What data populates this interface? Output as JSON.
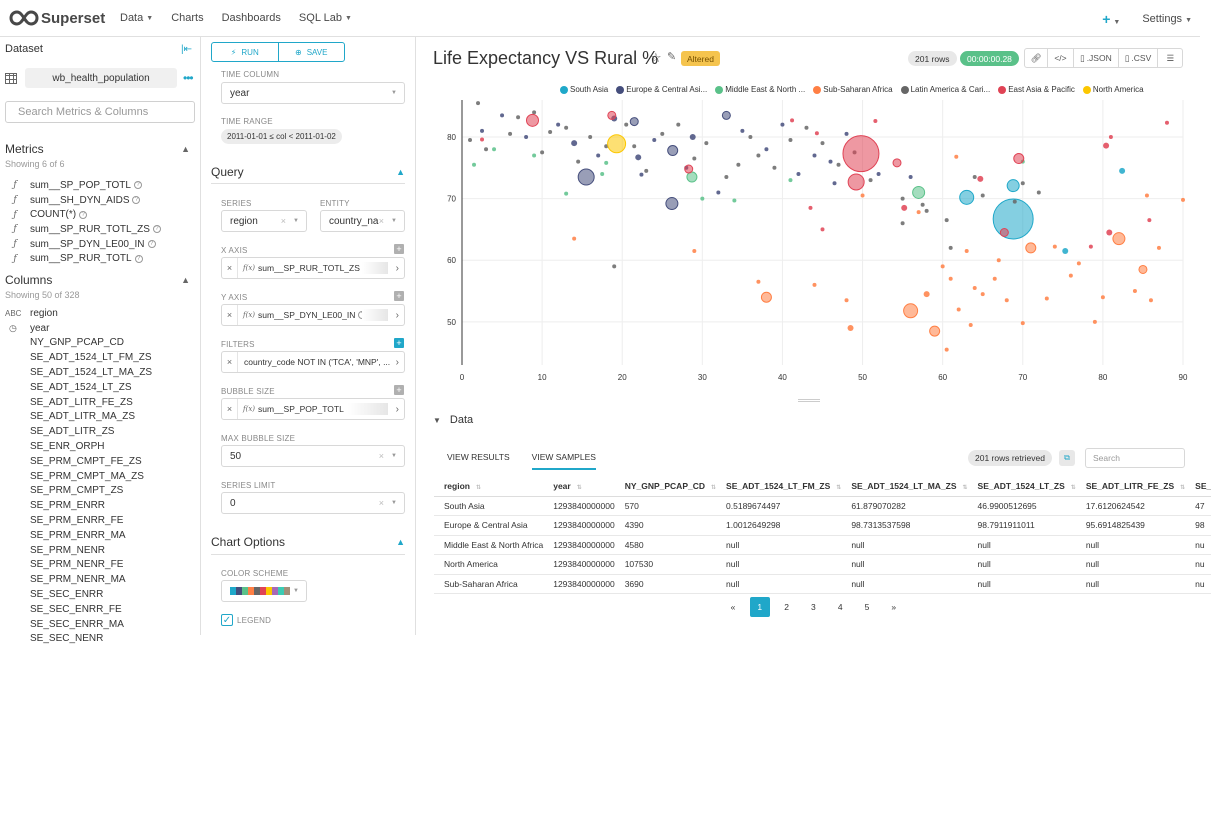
{
  "nav": {
    "logo": "Superset",
    "items": [
      {
        "label": "Data",
        "caret": true
      },
      {
        "label": "Charts",
        "caret": false
      },
      {
        "label": "Dashboards",
        "caret": false
      },
      {
        "label": "SQL Lab",
        "caret": true
      }
    ],
    "plus": "+",
    "settings": "Settings"
  },
  "datasource": {
    "header": "Dataset",
    "name": "wb_health_population",
    "search_placeholder": "Search Metrics & Columns",
    "metrics_title": "Metrics",
    "metrics_sub": "Showing 6 of 6",
    "metrics": [
      "sum__SP_POP_TOTL",
      "sum__SH_DYN_AIDS",
      "COUNT(*)",
      "sum__SP_RUR_TOTL_ZS",
      "sum__SP_DYN_LE00_IN",
      "sum__SP_RUR_TOTL"
    ],
    "columns_title": "Columns",
    "columns_sub": "Showing 50 of 328",
    "columns": [
      {
        "type": "ABC",
        "name": "region"
      },
      {
        "type": "clock",
        "name": "year"
      },
      {
        "type": "",
        "name": "NY_GNP_PCAP_CD"
      },
      {
        "type": "",
        "name": "SE_ADT_1524_LT_FM_ZS"
      },
      {
        "type": "",
        "name": "SE_ADT_1524_LT_MA_ZS"
      },
      {
        "type": "",
        "name": "SE_ADT_1524_LT_ZS"
      },
      {
        "type": "",
        "name": "SE_ADT_LITR_FE_ZS"
      },
      {
        "type": "",
        "name": "SE_ADT_LITR_MA_ZS"
      },
      {
        "type": "",
        "name": "SE_ADT_LITR_ZS"
      },
      {
        "type": "",
        "name": "SE_ENR_ORPH"
      },
      {
        "type": "",
        "name": "SE_PRM_CMPT_FE_ZS"
      },
      {
        "type": "",
        "name": "SE_PRM_CMPT_MA_ZS"
      },
      {
        "type": "",
        "name": "SE_PRM_CMPT_ZS"
      },
      {
        "type": "",
        "name": "SE_PRM_ENRR"
      },
      {
        "type": "",
        "name": "SE_PRM_ENRR_FE"
      },
      {
        "type": "",
        "name": "SE_PRM_ENRR_MA"
      },
      {
        "type": "",
        "name": "SE_PRM_NENR"
      },
      {
        "type": "",
        "name": "SE_PRM_NENR_FE"
      },
      {
        "type": "",
        "name": "SE_PRM_NENR_MA"
      },
      {
        "type": "",
        "name": "SE_SEC_ENRR"
      },
      {
        "type": "",
        "name": "SE_SEC_ENRR_FE"
      },
      {
        "type": "",
        "name": "SE_SEC_ENRR_MA"
      },
      {
        "type": "",
        "name": "SE_SEC_NENR"
      }
    ]
  },
  "controls": {
    "run": "RUN",
    "save": "SAVE",
    "time_column_label": "TIME COLUMN",
    "time_column_value": "year",
    "time_range_label": "TIME RANGE",
    "time_range_value": "2011-01-01 ≤ col < 2011-01-02",
    "query_title": "Query",
    "series_label": "SERIES",
    "series_value": "region",
    "entity_label": "ENTITY",
    "entity_value": "country_na",
    "x_axis_label": "X AXIS",
    "x_axis_value": "sum__SP_RUR_TOTL_ZS",
    "y_axis_label": "Y AXIS",
    "y_axis_value": "sum__SP_DYN_LE00_IN",
    "filters_label": "FILTERS",
    "filters_value": "country_code NOT IN ('TCA', 'MNP', ...",
    "bubble_size_label": "BUBBLE SIZE",
    "bubble_size_value": "sum__SP_POP_TOTL",
    "max_bubble_label": "MAX BUBBLE SIZE",
    "max_bubble_value": "50",
    "series_limit_label": "SERIES LIMIT",
    "series_limit_value": "0",
    "chart_options_title": "Chart Options",
    "color_scheme_label": "COLOR SCHEME",
    "legend_label": "LEGEND",
    "scheme_colors": [
      "#1fa8c9",
      "#454e7c",
      "#5ac189",
      "#ff7f44",
      "#666666",
      "#e04355",
      "#fcc700",
      "#a868b7",
      "#3cccb4",
      "#a38f79"
    ]
  },
  "chart": {
    "title": "Life Expectancy VS Rural %",
    "altered": "Altered",
    "rows": "201 rows",
    "timer": "00:00:00.28",
    "json": ".JSON",
    "csv": ".CSV",
    "legend": [
      {
        "label": "South Asia",
        "color": "#1fa8c9"
      },
      {
        "label": "Europe & Central Asi...",
        "color": "#454e7c"
      },
      {
        "label": "Middle East & North ...",
        "color": "#5ac189"
      },
      {
        "label": "Sub-Saharan Africa",
        "color": "#ff7f44"
      },
      {
        "label": "Latin America & Cari...",
        "color": "#666666"
      },
      {
        "label": "East Asia & Pacific",
        "color": "#e04355"
      },
      {
        "label": "North America",
        "color": "#fcc700"
      }
    ]
  },
  "chart_data": {
    "type": "scatter",
    "title": "Life Expectancy VS Rural %",
    "xlabel": "",
    "ylabel": "",
    "xlim": [
      0,
      90
    ],
    "ylim": [
      43,
      86
    ],
    "xticks": [
      0,
      10,
      20,
      30,
      40,
      50,
      60,
      70,
      80,
      90
    ],
    "yticks": [
      50,
      60,
      70,
      80
    ],
    "grid": true,
    "series": [
      {
        "name": "South Asia",
        "color": "#1fa8c9",
        "points": [
          [
            63,
            70.2,
            7
          ],
          [
            68.8,
            66.7,
            20
          ],
          [
            68.8,
            72.1,
            6
          ],
          [
            82.4,
            74.5,
            3
          ],
          [
            75.3,
            61.5,
            3
          ]
        ]
      },
      {
        "name": "Europe & Central Asia",
        "color": "#454e7c",
        "points": [
          [
            2.5,
            81,
            2
          ],
          [
            5,
            83.5,
            2
          ],
          [
            8,
            80,
            2
          ],
          [
            12,
            82,
            2
          ],
          [
            14,
            79,
            3
          ],
          [
            15.5,
            73.5,
            8
          ],
          [
            17,
            77,
            2
          ],
          [
            19,
            83,
            3
          ],
          [
            21.5,
            82.5,
            4
          ],
          [
            22,
            76.7,
            3
          ],
          [
            24,
            79.5,
            2
          ],
          [
            26.3,
            77.8,
            5
          ],
          [
            28,
            75,
            2
          ],
          [
            28.8,
            80,
            3
          ],
          [
            32,
            71,
            2
          ],
          [
            33,
            83.5,
            4
          ],
          [
            35,
            81,
            2
          ],
          [
            38,
            78,
            2
          ],
          [
            40,
            82,
            2
          ],
          [
            42,
            74,
            2
          ],
          [
            44,
            77,
            2
          ],
          [
            46,
            76,
            2
          ],
          [
            48,
            80.5,
            2
          ],
          [
            52,
            74,
            2
          ],
          [
            56,
            73.5,
            2
          ],
          [
            46.5,
            72.5,
            2
          ],
          [
            26.2,
            69.2,
            6
          ],
          [
            22.4,
            73.9,
            2
          ]
        ]
      },
      {
        "name": "Middle East & North Africa",
        "color": "#5ac189",
        "points": [
          [
            1.5,
            75.5,
            2
          ],
          [
            4,
            78,
            2
          ],
          [
            9,
            77,
            2
          ],
          [
            13,
            70.8,
            2
          ],
          [
            17.5,
            74,
            2
          ],
          [
            18,
            75.8,
            2
          ],
          [
            28.7,
            73.5,
            5
          ],
          [
            34,
            69.7,
            2
          ],
          [
            41,
            73,
            2
          ],
          [
            57,
            71,
            6
          ],
          [
            30,
            70,
            2
          ],
          [
            70,
            76,
            2
          ]
        ]
      },
      {
        "name": "Sub-Saharan Africa",
        "color": "#ff7f44",
        "points": [
          [
            14,
            63.5,
            2
          ],
          [
            29,
            61.5,
            2
          ],
          [
            37,
            56.5,
            2
          ],
          [
            38,
            54,
            5
          ],
          [
            44,
            56,
            2
          ],
          [
            48,
            53.5,
            2
          ],
          [
            48.5,
            49,
            3
          ],
          [
            56,
            51.8,
            7
          ],
          [
            58,
            54.5,
            3
          ],
          [
            59,
            48.5,
            5
          ],
          [
            60,
            59,
            2
          ],
          [
            61,
            57,
            2
          ],
          [
            62,
            52,
            2
          ],
          [
            63.5,
            49.5,
            2
          ],
          [
            63,
            61.5,
            2
          ],
          [
            64,
            55.5,
            2
          ],
          [
            65,
            54.5,
            2
          ],
          [
            66.5,
            57,
            2
          ],
          [
            67,
            60,
            2
          ],
          [
            68,
            53.5,
            2
          ],
          [
            70,
            49.8,
            2
          ],
          [
            71,
            62,
            5
          ],
          [
            73,
            53.8,
            2
          ],
          [
            74,
            62.2,
            2
          ],
          [
            76,
            57.5,
            2
          ],
          [
            77,
            59.5,
            2
          ],
          [
            79,
            50,
            2
          ],
          [
            80,
            54,
            2
          ],
          [
            82,
            63.5,
            6
          ],
          [
            84,
            55,
            2
          ],
          [
            85,
            58.5,
            4
          ],
          [
            86,
            53.5,
            2
          ],
          [
            87,
            62,
            2
          ],
          [
            60.5,
            45.5,
            2
          ],
          [
            85.5,
            70.5,
            2
          ],
          [
            90,
            69.8,
            2
          ],
          [
            57,
            67.8,
            2
          ],
          [
            50,
            70.5,
            2
          ],
          [
            61.7,
            76.8,
            2
          ]
        ]
      },
      {
        "name": "Latin America & Caribbean",
        "color": "#666666",
        "points": [
          [
            1,
            79.5,
            2
          ],
          [
            2,
            85.5,
            2
          ],
          [
            3,
            78,
            2
          ],
          [
            6,
            80.5,
            2
          ],
          [
            7,
            83.2,
            2
          ],
          [
            9,
            84,
            2
          ],
          [
            10,
            77.5,
            2
          ],
          [
            11,
            80.8,
            2
          ],
          [
            13,
            81.5,
            2
          ],
          [
            14.5,
            76,
            2
          ],
          [
            16,
            80,
            2
          ],
          [
            18,
            78.5,
            2
          ],
          [
            20.5,
            82,
            2
          ],
          [
            21.5,
            78.5,
            2
          ],
          [
            23,
            74.5,
            2
          ],
          [
            25,
            80.5,
            2
          ],
          [
            27,
            82,
            2
          ],
          [
            29,
            76.5,
            2
          ],
          [
            30.5,
            79,
            2
          ],
          [
            33,
            73.5,
            2
          ],
          [
            34.5,
            75.5,
            2
          ],
          [
            36,
            80,
            2
          ],
          [
            37,
            77,
            2
          ],
          [
            39,
            75,
            2
          ],
          [
            41,
            79.5,
            2
          ],
          [
            43,
            81.5,
            2
          ],
          [
            45,
            79,
            2
          ],
          [
            47,
            75.5,
            2
          ],
          [
            49,
            77.5,
            2
          ],
          [
            51,
            73,
            2
          ],
          [
            55,
            66,
            2
          ],
          [
            58,
            68,
            2
          ],
          [
            60.5,
            66.5,
            2
          ],
          [
            65,
            70.5,
            2
          ],
          [
            69,
            69.5,
            2
          ],
          [
            70,
            72.5,
            2
          ],
          [
            72,
            71,
            2
          ],
          [
            64,
            73.5,
            2
          ],
          [
            61,
            62,
            2
          ],
          [
            55,
            70,
            2
          ],
          [
            57.5,
            69,
            2
          ],
          [
            19,
            59,
            2
          ]
        ]
      },
      {
        "name": "East Asia & Pacific",
        "color": "#e04355",
        "points": [
          [
            8.8,
            82.7,
            6
          ],
          [
            18.7,
            83.5,
            4
          ],
          [
            28.3,
            74.8,
            4
          ],
          [
            49.8,
            77.3,
            18
          ],
          [
            49.2,
            72.7,
            8
          ],
          [
            54.3,
            75.8,
            4
          ],
          [
            55.2,
            68.5,
            3
          ],
          [
            69.5,
            76.5,
            5
          ],
          [
            64.7,
            73.2,
            3
          ],
          [
            67.7,
            64.5,
            4
          ],
          [
            80.8,
            64.5,
            3
          ],
          [
            80.4,
            78.6,
            3
          ],
          [
            45,
            65,
            2
          ],
          [
            43.5,
            68.5,
            2
          ],
          [
            85.8,
            66.5,
            2
          ],
          [
            78.5,
            62.2,
            2
          ],
          [
            88,
            82.3,
            2
          ],
          [
            81,
            80,
            2
          ],
          [
            2.5,
            79.6,
            2
          ],
          [
            44.3,
            80.6,
            2
          ],
          [
            51.6,
            82.6,
            2
          ],
          [
            41.2,
            82.7,
            2
          ]
        ]
      },
      {
        "name": "North America",
        "color": "#fcc700",
        "points": [
          [
            19.3,
            78.9,
            9
          ]
        ]
      }
    ]
  },
  "data_panel": {
    "toggle": "Data",
    "tab_results": "VIEW RESULTS",
    "tab_samples": "VIEW SAMPLES",
    "retrieved": "201 rows retrieved",
    "search_placeholder": "Search",
    "headers": [
      "region",
      "year",
      "NY_GNP_PCAP_CD",
      "SE_ADT_1524_LT_FM_ZS",
      "SE_ADT_1524_LT_MA_ZS",
      "SE_ADT_1524_LT_ZS",
      "SE_ADT_LITR_FE_ZS",
      "SE_"
    ],
    "rows": [
      [
        "South Asia",
        "1293840000000",
        "570",
        "0.5189674497",
        "61.879070282",
        "46.9900512695",
        "17.6120624542",
        "47"
      ],
      [
        "Europe & Central Asia",
        "1293840000000",
        "4390",
        "1.0012649298",
        "98.7313537598",
        "98.7911911011",
        "95.6914825439",
        "98"
      ],
      [
        "Middle East & North Africa",
        "1293840000000",
        "4580",
        "null",
        "null",
        "null",
        "null",
        "nu"
      ],
      [
        "North America",
        "1293840000000",
        "107530",
        "null",
        "null",
        "null",
        "null",
        "nu"
      ],
      [
        "Sub-Saharan Africa",
        "1293840000000",
        "3690",
        "null",
        "null",
        "null",
        "null",
        "nu"
      ]
    ],
    "pages": [
      "«",
      "1",
      "2",
      "3",
      "4",
      "5",
      "»"
    ],
    "active_page": "1"
  }
}
